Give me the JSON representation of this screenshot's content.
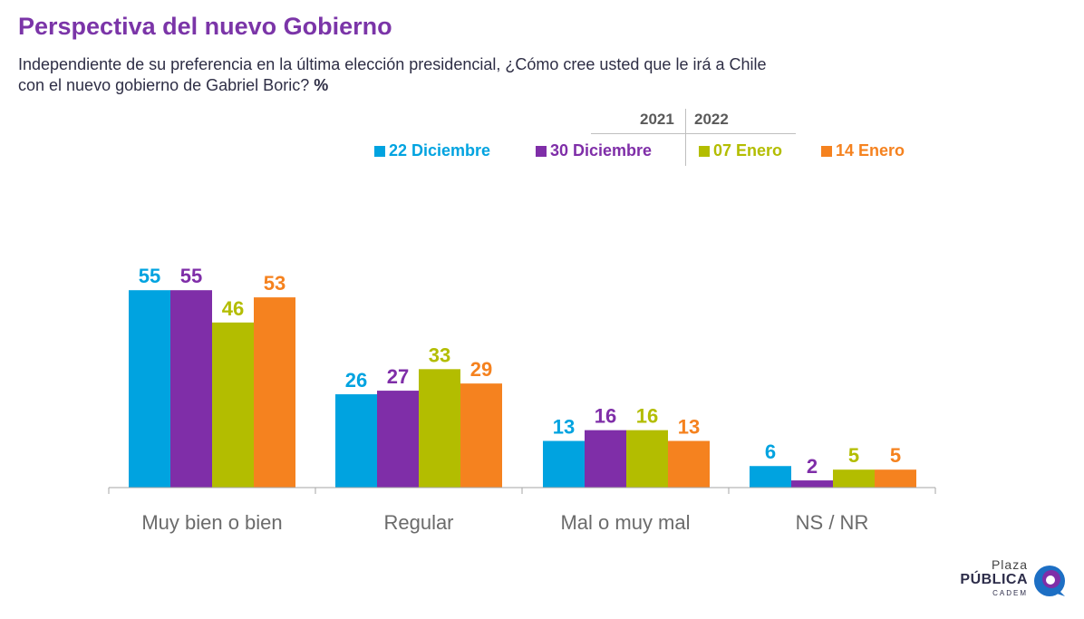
{
  "title": "Perspectiva del nuevo Gobierno",
  "subtitle_line1": "Independiente de su preferencia en la última elección presidencial, ¿Cómo cree usted que le irá a Chile",
  "subtitle_line2": "con el nuevo gobierno de Gabriel Boric?",
  "subtitle_pct": "%",
  "years": [
    "2021",
    "2022"
  ],
  "logo": {
    "plaza": "Plaza",
    "publica": "PÚBLICA",
    "cadem": "CADEM"
  },
  "chart_data": {
    "type": "bar",
    "categories": [
      "Muy bien o bien",
      "Regular",
      "Mal o muy mal",
      "NS / NR"
    ],
    "series": [
      {
        "name": "22 Diciembre",
        "color": "#00a3e0",
        "values": [
          55,
          26,
          13,
          6
        ]
      },
      {
        "name": "30 Diciembre",
        "color": "#7f2ea8",
        "values": [
          55,
          27,
          16,
          2
        ]
      },
      {
        "name": "07 Enero",
        "color": "#b3bd00",
        "values": [
          46,
          33,
          16,
          5
        ]
      },
      {
        "name": "14 Enero",
        "color": "#f5821f",
        "values": [
          53,
          29,
          13,
          5
        ]
      }
    ],
    "ylim": [
      0,
      60
    ],
    "grid": false,
    "legend": "top-right"
  }
}
